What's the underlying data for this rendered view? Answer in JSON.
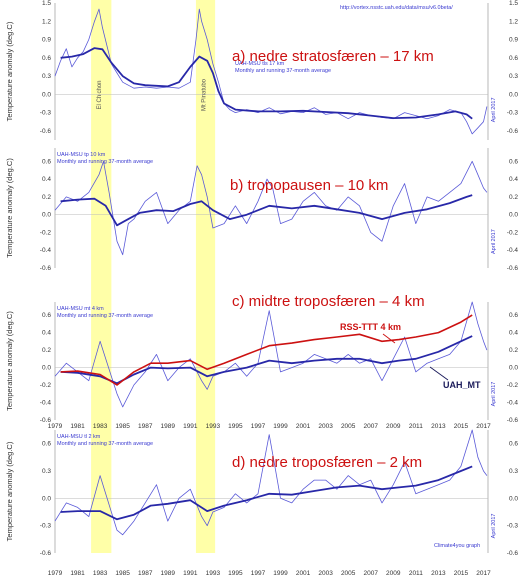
{
  "source_url": "http://vortex.nsstc.uah.edu/data/msu/v6.0beta/",
  "credit": "Climate4you graph",
  "year_ticks": [
    "1979",
    "1981",
    "1983",
    "1985",
    "1987",
    "1989",
    "1991",
    "1993",
    "1995",
    "1997",
    "1999",
    "2001",
    "2003",
    "2005",
    "2007",
    "2009",
    "2011",
    "2013",
    "2015",
    "2017"
  ],
  "colors": {
    "monthly": "#5a5ad8",
    "running": "#2828a8",
    "rss": "#cc1111",
    "highlight": "#ffff99",
    "title": "#cc1111"
  },
  "chart_data": [
    {
      "type": "line",
      "panel_title": "a) nedre stratosfæren – 17 km",
      "source_label": "UAH-MSU tls 17 km",
      "subtitle": "Monthly and running 37-month average",
      "ylabel": "Temperature anomaly (deg.C)",
      "right_label": "April 2017",
      "ylim": [
        -0.75,
        1.5
      ],
      "yticks": [
        "1.5",
        "1.2",
        "0.9",
        "0.6",
        "0.3",
        "0.0",
        "-0.3",
        "-0.6"
      ],
      "highlights": [
        {
          "label": "El Chichon",
          "start": 1982.2,
          "end": 1984.0
        },
        {
          "label": "Mt Pinatubo",
          "start": 1991.5,
          "end": 1993.2
        }
      ],
      "series": [
        {
          "name": "Monthly",
          "x": [
            1979.0,
            1979.5,
            1980.0,
            1980.5,
            1981.0,
            1981.5,
            1982.0,
            1982.5,
            1982.9,
            1983.2,
            1983.6,
            1984.0,
            1984.5,
            1985.0,
            1985.5,
            1986.0,
            1987.0,
            1988.0,
            1989.0,
            1990.0,
            1990.5,
            1991.0,
            1991.5,
            1991.8,
            1992.0,
            1992.5,
            1993.0,
            1993.5,
            1994.0,
            1994.5,
            1995.0,
            1996.0,
            1997.0,
            1998.0,
            1999.0,
            2000.0,
            2001.0,
            2002.0,
            2003.0,
            2004.0,
            2005.0,
            2006.0,
            2007.0,
            2008.0,
            2009.0,
            2010.0,
            2011.0,
            2012.0,
            2013.0,
            2014.0,
            2015.0,
            2015.5,
            2016.0,
            2016.5,
            2017.0,
            2017.3
          ],
          "y": [
            0.3,
            0.55,
            0.75,
            0.45,
            0.6,
            0.7,
            0.9,
            1.2,
            1.4,
            1.1,
            0.8,
            0.5,
            0.35,
            0.2,
            0.15,
            0.1,
            0.12,
            0.1,
            0.12,
            0.1,
            0.15,
            0.2,
            0.9,
            1.4,
            1.2,
            0.9,
            0.5,
            0.2,
            -0.15,
            -0.25,
            -0.3,
            -0.25,
            -0.3,
            -0.22,
            -0.32,
            -0.28,
            -0.3,
            -0.22,
            -0.33,
            -0.3,
            -0.4,
            -0.3,
            -0.35,
            -0.38,
            -0.4,
            -0.3,
            -0.35,
            -0.4,
            -0.35,
            -0.25,
            -0.3,
            -0.45,
            -0.65,
            -0.55,
            -0.45,
            -0.2
          ]
        },
        {
          "name": "Running 37-month average",
          "x": [
            1979.5,
            1980.5,
            1981.5,
            1982.5,
            1983.2,
            1984.0,
            1985.0,
            1986.0,
            1987.0,
            1988.0,
            1989.0,
            1990.0,
            1991.0,
            1991.8,
            1992.5,
            1993.0,
            1993.5,
            1994.0,
            1995.0,
            1997.0,
            1999.0,
            2001.0,
            2003.0,
            2005.0,
            2007.0,
            2009.0,
            2011.0,
            2013.0,
            2014.5,
            2015.5,
            2016.0
          ],
          "y": [
            0.6,
            0.62,
            0.66,
            0.76,
            0.74,
            0.52,
            0.3,
            0.18,
            0.15,
            0.14,
            0.13,
            0.2,
            0.45,
            0.62,
            0.55,
            0.35,
            0.05,
            -0.15,
            -0.25,
            -0.28,
            -0.28,
            -0.27,
            -0.29,
            -0.31,
            -0.35,
            -0.39,
            -0.38,
            -0.33,
            -0.28,
            -0.33,
            -0.4
          ]
        }
      ]
    },
    {
      "type": "line",
      "panel_title": "b) tropopausen – 10 km",
      "source_label": "UAH-MSU tp 10 km",
      "subtitle": "Monthly and running 37-month average",
      "ylabel": "Temperature anomaly (deg.C)",
      "right_label": "April 2017",
      "ylim": [
        -0.6,
        0.75
      ],
      "yticks": [
        "0.6",
        "0.4",
        "0.2",
        "0.0",
        "-0.2",
        "-0.4",
        "-0.6"
      ],
      "series": [
        {
          "name": "Monthly",
          "x": [
            1979.0,
            1980.0,
            1981.0,
            1982.0,
            1982.9,
            1983.3,
            1983.8,
            1984.5,
            1985.0,
            1985.5,
            1986.0,
            1987.0,
            1988.0,
            1989.0,
            1990.0,
            1991.0,
            1991.6,
            1992.0,
            1992.5,
            1993.0,
            1994.0,
            1995.0,
            1996.0,
            1997.0,
            1997.8,
            1998.3,
            1999.0,
            2000.0,
            2001.0,
            2002.0,
            2003.0,
            2004.0,
            2005.0,
            2006.0,
            2007.0,
            2008.0,
            2009.0,
            2010.0,
            2011.0,
            2012.0,
            2013.0,
            2014.0,
            2015.0,
            2016.0,
            2016.5,
            2017.0,
            2017.3
          ],
          "y": [
            0.05,
            0.2,
            0.15,
            0.25,
            0.45,
            0.6,
            0.25,
            -0.3,
            -0.45,
            -0.1,
            -0.05,
            0.15,
            0.25,
            -0.1,
            0.05,
            0.15,
            0.55,
            0.45,
            0.2,
            -0.15,
            -0.1,
            0.1,
            -0.1,
            0.15,
            0.4,
            0.3,
            -0.1,
            -0.05,
            0.15,
            0.25,
            0.1,
            0.05,
            0.2,
            0.1,
            -0.2,
            -0.3,
            0.1,
            0.35,
            -0.1,
            0.2,
            0.15,
            0.25,
            0.35,
            0.6,
            0.45,
            0.3,
            0.25
          ]
        },
        {
          "name": "Running 37-month average",
          "x": [
            1979.5,
            1981.0,
            1982.5,
            1983.5,
            1984.5,
            1985.5,
            1986.5,
            1988.0,
            1989.5,
            1991.0,
            1992.0,
            1993.0,
            1994.5,
            1996.0,
            1998.0,
            2000.0,
            2002.0,
            2004.0,
            2006.0,
            2008.0,
            2010.0,
            2012.0,
            2014.0,
            2015.5,
            2016.0
          ],
          "y": [
            0.15,
            0.17,
            0.18,
            0.1,
            -0.12,
            -0.05,
            0.02,
            0.05,
            0.04,
            0.12,
            0.15,
            0.05,
            -0.05,
            0.0,
            0.1,
            0.07,
            0.1,
            0.06,
            0.02,
            -0.05,
            0.02,
            0.06,
            0.13,
            0.2,
            0.22
          ]
        }
      ]
    },
    {
      "type": "line",
      "panel_title": "c) midtre troposfæren – 4 km",
      "source_label": "UAH-MSU mt 4 km",
      "subtitle": "Monthly and running 37-month average",
      "ylabel": "Temperature anomaly (deg.C)",
      "right_label": "April 2017",
      "ylim": [
        -0.6,
        0.75
      ],
      "yticks": [
        "0.6",
        "0.4",
        "0.2",
        "0.0",
        "-0.2",
        "-0.4",
        "-0.6"
      ],
      "annotations": [
        "RSS-TTT 4 km",
        "UAH_MT"
      ],
      "series": [
        {
          "name": "Monthly",
          "x": [
            1979.0,
            1980.0,
            1981.0,
            1982.0,
            1983.0,
            1983.5,
            1984.5,
            1985.0,
            1986.0,
            1987.0,
            1988.0,
            1989.0,
            1990.0,
            1991.0,
            1992.0,
            1992.5,
            1993.0,
            1994.0,
            1995.0,
            1996.0,
            1997.0,
            1998.0,
            1998.5,
            1999.0,
            2000.0,
            2001.0,
            2002.0,
            2003.0,
            2004.0,
            2005.0,
            2006.0,
            2007.0,
            2008.0,
            2009.0,
            2010.0,
            2011.0,
            2012.0,
            2013.0,
            2014.0,
            2015.0,
            2016.0,
            2016.5,
            2017.0,
            2017.3
          ],
          "y": [
            -0.1,
            0.05,
            -0.05,
            -0.15,
            0.3,
            0.1,
            -0.3,
            -0.45,
            -0.2,
            -0.05,
            0.15,
            -0.15,
            0.0,
            0.1,
            -0.15,
            -0.25,
            -0.1,
            -0.05,
            0.05,
            -0.1,
            0.05,
            0.65,
            0.3,
            -0.05,
            0.0,
            0.05,
            0.15,
            0.1,
            0.05,
            0.15,
            0.05,
            0.1,
            -0.15,
            0.1,
            0.35,
            -0.05,
            0.05,
            0.1,
            0.15,
            0.3,
            0.75,
            0.5,
            0.3,
            0.2
          ]
        },
        {
          "name": "Running 37-month average",
          "x": [
            1979.5,
            1981.0,
            1983.0,
            1984.5,
            1986.0,
            1987.5,
            1989.0,
            1991.0,
            1992.5,
            1994.0,
            1996.0,
            1998.0,
            2000.0,
            2002.0,
            2004.0,
            2006.0,
            2008.0,
            2009.5,
            2011.0,
            2013.0,
            2015.0,
            2016.0
          ],
          "y": [
            -0.05,
            -0.06,
            -0.1,
            -0.18,
            -0.08,
            0.0,
            -0.01,
            0.0,
            -0.1,
            -0.05,
            0.0,
            0.08,
            0.05,
            0.08,
            0.1,
            0.1,
            0.05,
            0.08,
            0.1,
            0.18,
            0.3,
            0.36
          ]
        },
        {
          "name": "RSS-TTT 4 km",
          "x": [
            1979.5,
            1981.0,
            1983.0,
            1984.5,
            1986.0,
            1987.5,
            1989.0,
            1991.0,
            1992.5,
            1994.0,
            1996.0,
            1998.0,
            2000.0,
            2002.0,
            2004.0,
            2006.0,
            2008.0,
            2009.5,
            2011.0,
            2013.0,
            2015.0,
            2016.0
          ],
          "y": [
            -0.05,
            -0.04,
            -0.08,
            -0.2,
            -0.05,
            0.05,
            0.05,
            0.08,
            -0.02,
            0.05,
            0.15,
            0.25,
            0.28,
            0.32,
            0.35,
            0.38,
            0.3,
            0.32,
            0.35,
            0.4,
            0.52,
            0.6
          ]
        }
      ]
    },
    {
      "type": "line",
      "panel_title": "d) nedre troposfæren – 2 km",
      "source_label": "UAH-MSU tl 2 km",
      "subtitle": "Monthly and running 37-month average",
      "ylabel": "Temperature anomaly (deg.C)",
      "right_label": "April 2017",
      "ylim": [
        -0.6,
        0.75
      ],
      "yticks": [
        "0.6",
        "0.3",
        "0.0",
        "-0.3",
        "-0.6"
      ],
      "series": [
        {
          "name": "Monthly",
          "x": [
            1979.0,
            1980.0,
            1981.0,
            1982.0,
            1983.0,
            1983.5,
            1984.5,
            1985.0,
            1986.0,
            1987.0,
            1988.0,
            1989.0,
            1990.0,
            1991.0,
            1992.0,
            1992.5,
            1993.0,
            1994.0,
            1995.0,
            1996.0,
            1997.0,
            1998.0,
            1998.5,
            1999.0,
            2000.0,
            2001.0,
            2002.0,
            2003.0,
            2004.0,
            2005.0,
            2006.0,
            2007.0,
            2008.0,
            2009.0,
            2010.0,
            2011.0,
            2012.0,
            2013.0,
            2014.0,
            2015.0,
            2016.0,
            2016.5,
            2017.0,
            2017.3
          ],
          "y": [
            -0.25,
            -0.05,
            -0.1,
            -0.2,
            0.25,
            0.05,
            -0.35,
            -0.4,
            -0.25,
            -0.05,
            0.15,
            -0.25,
            0.0,
            0.1,
            -0.2,
            -0.3,
            -0.15,
            -0.1,
            0.05,
            -0.05,
            0.05,
            0.7,
            0.35,
            0.0,
            -0.05,
            0.1,
            0.2,
            0.2,
            0.1,
            0.25,
            0.15,
            0.2,
            -0.05,
            0.15,
            0.4,
            0.05,
            0.1,
            0.15,
            0.2,
            0.35,
            0.75,
            0.45,
            0.3,
            0.25
          ]
        },
        {
          "name": "Running 37-month average",
          "x": [
            1979.5,
            1981.0,
            1983.0,
            1984.5,
            1986.0,
            1987.5,
            1989.0,
            1991.0,
            1992.5,
            1994.0,
            1996.0,
            1998.0,
            2000.0,
            2002.0,
            2004.0,
            2006.0,
            2008.0,
            2009.5,
            2011.0,
            2013.0,
            2015.0,
            2016.0
          ],
          "y": [
            -0.15,
            -0.14,
            -0.14,
            -0.23,
            -0.18,
            -0.08,
            -0.06,
            -0.02,
            -0.14,
            -0.08,
            -0.02,
            0.05,
            0.04,
            0.08,
            0.12,
            0.14,
            0.1,
            0.12,
            0.14,
            0.2,
            0.3,
            0.35
          ]
        }
      ]
    }
  ]
}
